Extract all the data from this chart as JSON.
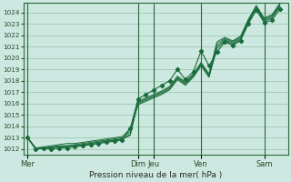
{
  "background_color": "#cce8e0",
  "grid_color": "#88bb99",
  "line_color": "#1a6b3a",
  "xlabel": "Pression niveau de la mer( hPa )",
  "ylim": [
    1011.5,
    1024.8
  ],
  "yticks": [
    1012,
    1013,
    1014,
    1015,
    1016,
    1017,
    1018,
    1019,
    1020,
    1021,
    1022,
    1023,
    1024
  ],
  "xtick_labels": [
    "Mer",
    "Dim",
    "Jeu",
    "Ven",
    "Sam"
  ],
  "xtick_positions": [
    0,
    14,
    16,
    22,
    30
  ],
  "xlim": [
    -0.5,
    33
  ],
  "n_points": 33,
  "series": [
    [
      1013.0,
      1012.1,
      1012.2,
      1012.3,
      1012.4,
      1012.5,
      1012.5,
      1012.6,
      1012.7,
      1012.8,
      1012.9,
      1013.0,
      1013.1,
      1013.8,
      1015.9,
      1016.2,
      1016.5,
      1016.8,
      1017.2,
      1018.1,
      1017.6,
      1018.3,
      1019.3,
      1018.3,
      1020.8,
      1021.5,
      1021.2,
      1021.6,
      1023.1,
      1024.3,
      1023.2,
      1023.5,
      1024.5
    ],
    [
      1013.0,
      1012.1,
      1012.1,
      1012.2,
      1012.3,
      1012.3,
      1012.4,
      1012.5,
      1012.6,
      1012.7,
      1012.8,
      1012.9,
      1013.0,
      1013.5,
      1016.0,
      1016.3,
      1016.6,
      1016.9,
      1017.3,
      1018.2,
      1017.7,
      1018.4,
      1019.4,
      1018.4,
      1021.0,
      1021.6,
      1021.3,
      1021.7,
      1023.2,
      1024.4,
      1023.3,
      1023.6,
      1024.6
    ],
    [
      1013.0,
      1012.1,
      1012.1,
      1012.2,
      1012.2,
      1012.3,
      1012.3,
      1012.4,
      1012.5,
      1012.6,
      1012.7,
      1012.8,
      1012.9,
      1013.3,
      1016.1,
      1016.4,
      1016.7,
      1017.0,
      1017.4,
      1018.3,
      1017.8,
      1018.5,
      1019.5,
      1018.5,
      1021.2,
      1021.7,
      1021.4,
      1021.8,
      1023.3,
      1024.5,
      1023.4,
      1023.7,
      1024.7
    ],
    [
      1013.0,
      1012.0,
      1012.1,
      1012.1,
      1012.2,
      1012.2,
      1012.3,
      1012.4,
      1012.5,
      1012.6,
      1012.7,
      1012.8,
      1012.9,
      1013.2,
      1016.2,
      1016.5,
      1016.8,
      1017.1,
      1017.5,
      1018.4,
      1017.9,
      1018.6,
      1019.6,
      1018.6,
      1021.4,
      1021.8,
      1021.5,
      1021.9,
      1023.4,
      1024.6,
      1023.5,
      1023.8,
      1024.8
    ]
  ],
  "outlier_series": [
    1013.0,
    1012.0,
    1012.1,
    1012.0,
    1012.1,
    1012.1,
    1012.2,
    1012.3,
    1012.4,
    1012.5,
    1012.6,
    1012.7,
    1012.8,
    1013.8,
    1016.4,
    1016.8,
    1017.2,
    1017.6,
    1018.0,
    1019.0,
    1018.1,
    1018.8,
    1020.6,
    1019.3,
    1020.5,
    1021.4,
    1021.1,
    1021.5,
    1023.0,
    1024.2,
    1023.1,
    1023.3,
    1024.3
  ],
  "marker_indices": [
    0,
    2,
    4,
    6,
    8,
    10,
    12,
    14,
    16,
    18,
    20,
    22,
    24,
    26,
    28,
    30,
    32
  ]
}
